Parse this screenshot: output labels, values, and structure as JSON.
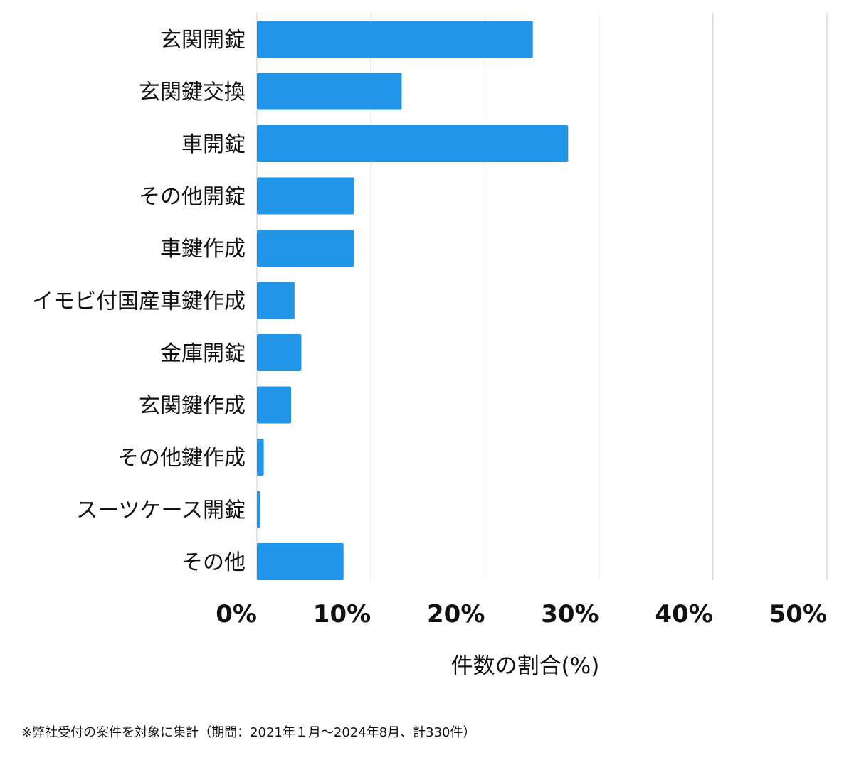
{
  "chart_data": {
    "type": "bar",
    "orientation": "horizontal",
    "categories": [
      "玄関開錠",
      "玄関鍵交換",
      "車開錠",
      "その他開錠",
      "車鍵作成",
      "イモビ付国産車鍵作成",
      "金庫開錠",
      "玄関鍵作成",
      "その他鍵作成",
      "スーツケース開錠",
      "その他"
    ],
    "values": [
      24.2,
      12.7,
      27.3,
      8.5,
      8.5,
      3.3,
      3.9,
      3.0,
      0.6,
      0.3,
      7.6
    ],
    "xlim": [
      0,
      50
    ],
    "xticks": [
      "0%",
      "10%",
      "20%",
      "30%",
      "40%",
      "50%"
    ],
    "xlabel": "件数の割合(%)",
    "ylabel": "",
    "grid": "vertical",
    "bar_color": "#2196e8"
  },
  "footnote": "※弊社受付の案件を対象に集計（期間：2021年１月〜2024年8月、計330件）"
}
